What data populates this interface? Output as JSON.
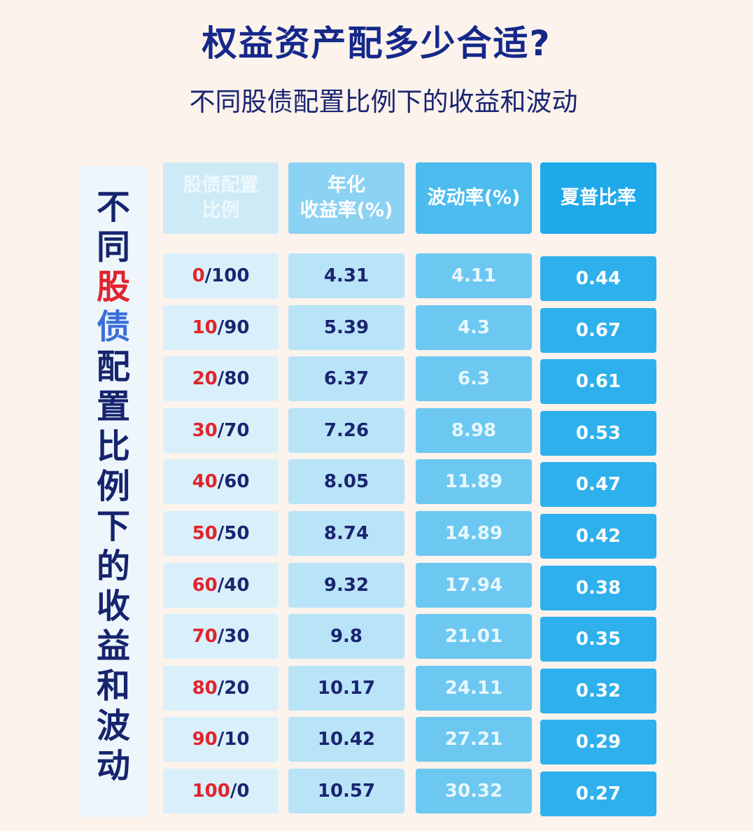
{
  "title": "权益资产配多少合适?",
  "subtitle": "不同股债配置比例下的收益和波动",
  "side_chars": [
    "不",
    "同",
    "股",
    "债",
    "配",
    "置",
    "比",
    "例",
    "下",
    "的",
    "收",
    "益",
    "和",
    "波",
    "动"
  ],
  "side_char_colors": [
    "#16246e",
    "#16246e",
    "#e2232d",
    "#3a6fd8",
    "#16246e",
    "#16246e",
    "#16246e",
    "#16246e",
    "#16246e",
    "#16246e",
    "#16246e",
    "#16246e",
    "#16246e",
    "#16246e",
    "#16246e"
  ],
  "headers": [
    "股债配置比例",
    "年化收益率(%)",
    "波动率(%)",
    "夏普比率"
  ],
  "rows": [
    {
      "stock": "0",
      "bond": "/100",
      "return": "4.31",
      "vol": "4.11",
      "sharpe": "0.44"
    },
    {
      "stock": "10",
      "bond": "/90",
      "return": "5.39",
      "vol": "4.3",
      "sharpe": "0.67"
    },
    {
      "stock": "20",
      "bond": "/80",
      "return": "6.37",
      "vol": "6.3",
      "sharpe": "0.61"
    },
    {
      "stock": "30",
      "bond": "/70",
      "return": "7.26",
      "vol": "8.98",
      "sharpe": "0.53"
    },
    {
      "stock": "40",
      "bond": "/60",
      "return": "8.05",
      "vol": "11.89",
      "sharpe": "0.47"
    },
    {
      "stock": "50",
      "bond": "/50",
      "return": "8.74",
      "vol": "14.89",
      "sharpe": "0.42"
    },
    {
      "stock": "60",
      "bond": "/40",
      "return": "9.32",
      "vol": "17.94",
      "sharpe": "0.38"
    },
    {
      "stock": "70",
      "bond": "/30",
      "return": "9.8",
      "vol": "21.01",
      "sharpe": "0.35"
    },
    {
      "stock": "80",
      "bond": "/20",
      "return": "10.17",
      "vol": "24.11",
      "sharpe": "0.32"
    },
    {
      "stock": "90",
      "bond": "/10",
      "return": "10.42",
      "vol": "27.21",
      "sharpe": "0.29"
    },
    {
      "stock": "100",
      "bond": "/0",
      "return": "10.57",
      "vol": "30.32",
      "sharpe": "0.27"
    }
  ]
}
